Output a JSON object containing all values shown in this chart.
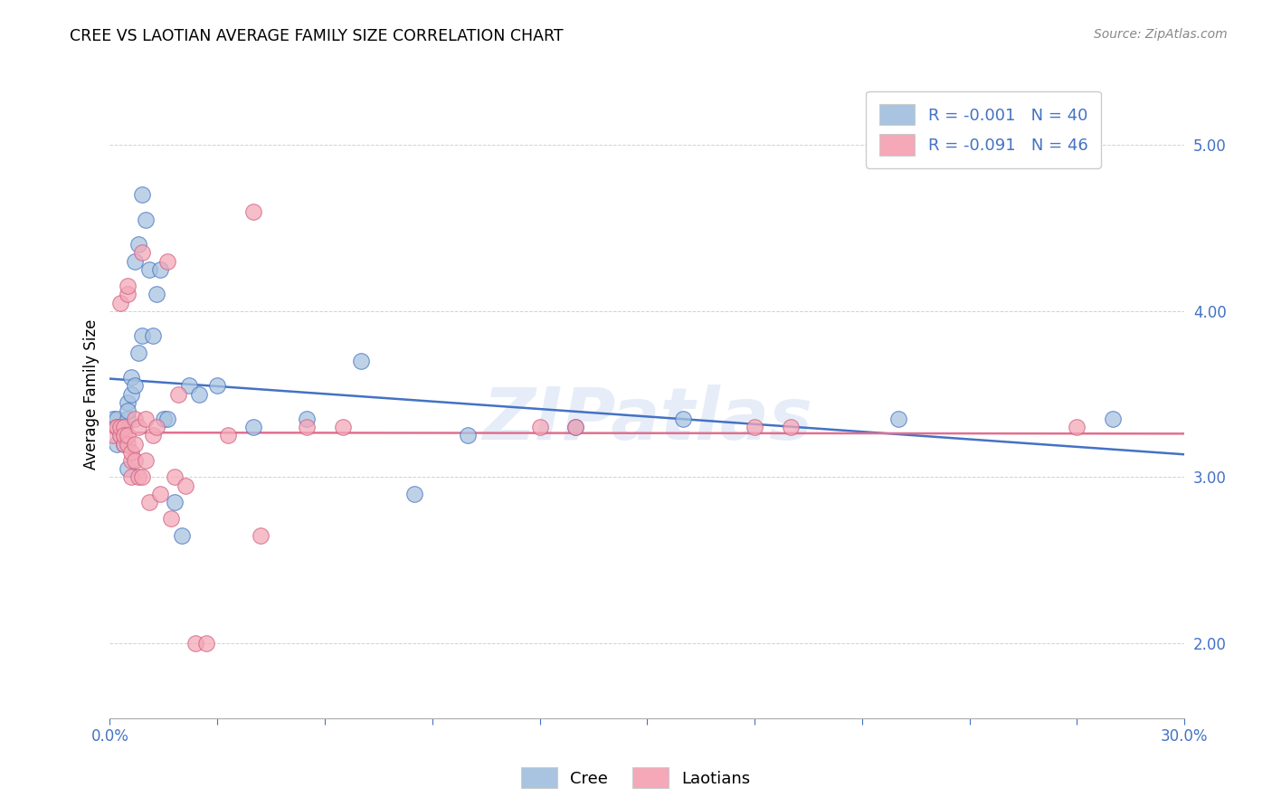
{
  "title": "CREE VS LAOTIAN AVERAGE FAMILY SIZE CORRELATION CHART",
  "source": "Source: ZipAtlas.com",
  "ylabel": "Average Family Size",
  "yticks": [
    2.0,
    3.0,
    4.0,
    5.0
  ],
  "xlim": [
    0.0,
    0.3
  ],
  "ylim": [
    1.55,
    5.45
  ],
  "legend_cree": "R = -0.001   N = 40",
  "legend_laotian": "R = -0.091   N = 46",
  "cree_color": "#a8c4e0",
  "laotian_color": "#f4a8b8",
  "cree_line_color": "#4472c4",
  "laotian_line_color": "#e07090",
  "watermark": "ZIPatlas",
  "cree_x": [
    0.001,
    0.002,
    0.002,
    0.003,
    0.003,
    0.004,
    0.004,
    0.005,
    0.005,
    0.005,
    0.005,
    0.006,
    0.006,
    0.007,
    0.007,
    0.008,
    0.008,
    0.009,
    0.009,
    0.01,
    0.011,
    0.012,
    0.013,
    0.014,
    0.015,
    0.016,
    0.018,
    0.02,
    0.022,
    0.025,
    0.03,
    0.04,
    0.055,
    0.07,
    0.085,
    0.1,
    0.13,
    0.16,
    0.22,
    0.28
  ],
  "cree_y": [
    3.35,
    3.2,
    3.35,
    3.25,
    3.3,
    3.3,
    3.2,
    3.45,
    3.35,
    3.4,
    3.05,
    3.5,
    3.6,
    4.3,
    3.55,
    4.4,
    3.75,
    3.85,
    4.7,
    4.55,
    4.25,
    3.85,
    4.1,
    4.25,
    3.35,
    3.35,
    2.85,
    2.65,
    3.55,
    3.5,
    3.55,
    3.3,
    3.35,
    3.7,
    2.9,
    3.25,
    3.3,
    3.35,
    3.35,
    3.35
  ],
  "laotian_x": [
    0.001,
    0.002,
    0.002,
    0.003,
    0.003,
    0.003,
    0.004,
    0.004,
    0.004,
    0.005,
    0.005,
    0.005,
    0.005,
    0.006,
    0.006,
    0.006,
    0.007,
    0.007,
    0.007,
    0.008,
    0.008,
    0.009,
    0.009,
    0.01,
    0.01,
    0.011,
    0.012,
    0.013,
    0.014,
    0.016,
    0.017,
    0.018,
    0.019,
    0.021,
    0.024,
    0.027,
    0.033,
    0.04,
    0.042,
    0.055,
    0.065,
    0.12,
    0.13,
    0.18,
    0.19,
    0.27
  ],
  "laotian_y": [
    3.25,
    3.3,
    3.3,
    3.25,
    3.3,
    4.05,
    3.3,
    3.2,
    3.25,
    3.2,
    3.25,
    4.1,
    4.15,
    3.0,
    3.1,
    3.15,
    3.1,
    3.2,
    3.35,
    3.0,
    3.3,
    3.0,
    4.35,
    3.1,
    3.35,
    2.85,
    3.25,
    3.3,
    2.9,
    4.3,
    2.75,
    3.0,
    3.5,
    2.95,
    2.0,
    2.0,
    3.25,
    4.6,
    2.65,
    3.3,
    3.3,
    3.3,
    3.3,
    3.3,
    3.3,
    3.3
  ]
}
